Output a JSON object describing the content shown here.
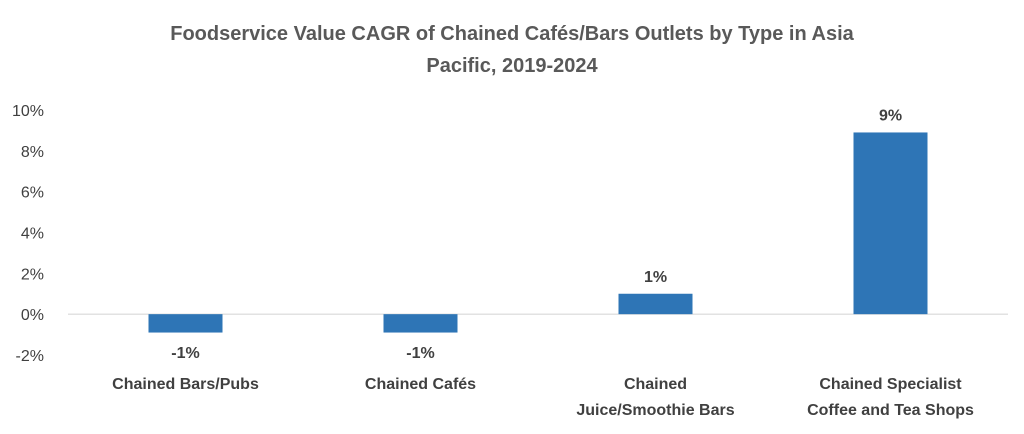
{
  "chart_data": {
    "type": "bar",
    "title_lines": [
      "Foodservice Value CAGR of Chained Cafés/Bars Outlets by Type in Asia",
      "Pacific, 2019-2024"
    ],
    "categories": [
      [
        "Chained Bars/Pubs"
      ],
      [
        "Chained Cafés"
      ],
      [
        "Chained",
        "Juice/Smoothie Bars"
      ],
      [
        "Chained Specialist",
        "Coffee and Tea Shops"
      ]
    ],
    "values": [
      -0.9,
      -0.9,
      1.0,
      8.9
    ],
    "data_labels": [
      "-1%",
      "-1%",
      "1%",
      "9%"
    ],
    "ylim": [
      -2,
      10
    ],
    "yticks": [
      10,
      8,
      6,
      4,
      2,
      0,
      -2
    ],
    "ytick_labels": [
      "10%",
      "8%",
      "6%",
      "4%",
      "2%",
      "0%",
      "-2%"
    ],
    "grid": false,
    "legend": "none",
    "colors": {
      "bar": "#2E75B6",
      "text": "#404040",
      "title": "#595959",
      "axis_line": "#D9D9D9"
    }
  }
}
